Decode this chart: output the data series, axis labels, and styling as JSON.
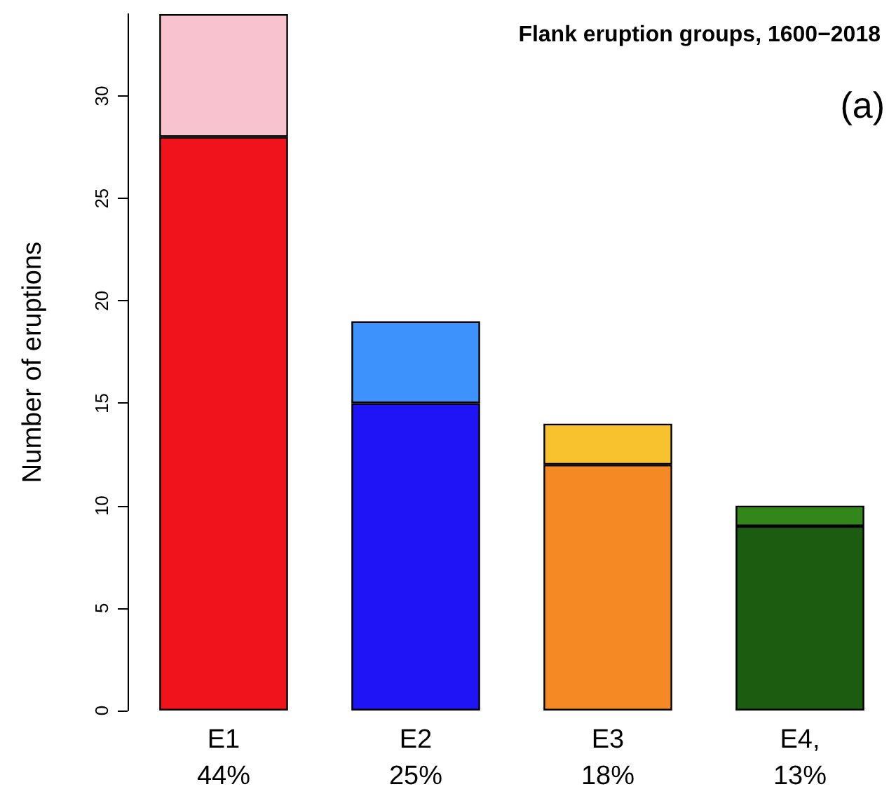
{
  "chart_data": {
    "type": "bar",
    "title": "Flank eruption groups, 1600−2018",
    "ylabel": "Number of eruptions",
    "annotations": [
      "(a)"
    ],
    "categories": [
      "E1\n44%",
      "E2\n25%",
      "E3\n18%",
      "E4,\n13%"
    ],
    "stacked": true,
    "series": [
      {
        "colors": [
          "#f0131b",
          "#1f14f5",
          "#f58a24",
          "#1c5c10"
        ],
        "values": [
          28,
          15,
          12,
          9
        ]
      },
      {
        "colors": [
          "#f8c3cf",
          "#3d93fb",
          "#f8c12e",
          "#33861a"
        ],
        "values": [
          6,
          4,
          2,
          1
        ]
      }
    ],
    "ylim": [
      0,
      34
    ],
    "yticks": [
      0,
      5,
      10,
      15,
      20,
      25,
      30
    ],
    "grid": false
  }
}
